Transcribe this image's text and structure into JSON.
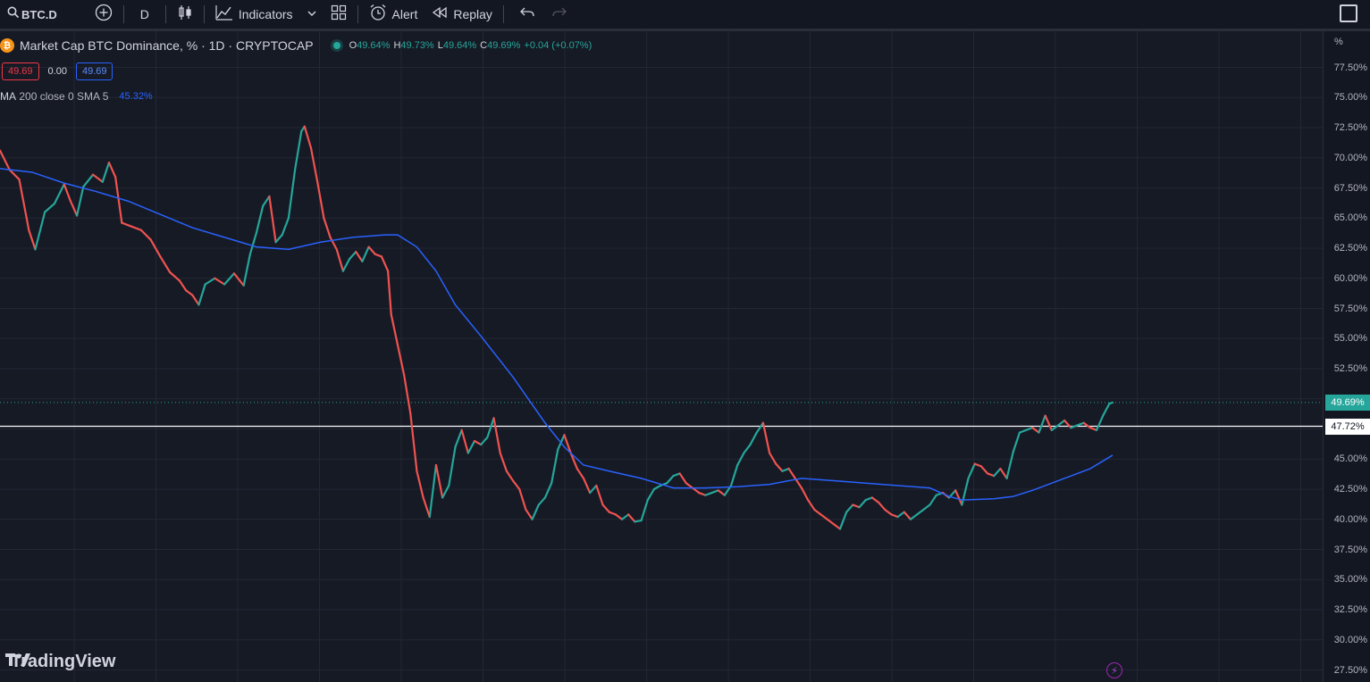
{
  "toolbar": {
    "symbol": "BTC.D",
    "interval": "D",
    "indicators_label": "Indicators",
    "alert_label": "Alert",
    "replay_label": "Replay"
  },
  "legend": {
    "title": "Market Cap BTC Dominance, % · 1D · CRYPTOCAP",
    "coin_symbol": "₿",
    "o_label": "O",
    "o_value": "49.64%",
    "h_label": "H",
    "h_value": "49.73%",
    "l_label": "L",
    "l_value": "49.64%",
    "c_label": "C",
    "c_value": "49.69%",
    "change": "+0.04 (+0.07%)",
    "bid": "49.69",
    "spread": "0.00",
    "ask": "49.69",
    "ma_name": "MA",
    "ma_params": "200 close 0 SMA 5",
    "ma_value": "45.32%"
  },
  "price_axis": {
    "unit": "%",
    "ticks": [
      "77.50%",
      "75.00%",
      "72.50%",
      "70.00%",
      "67.50%",
      "65.00%",
      "62.50%",
      "60.00%",
      "57.50%",
      "55.00%",
      "52.50%",
      "45.00%",
      "42.50%",
      "40.00%",
      "37.50%",
      "35.00%",
      "32.50%",
      "30.00%",
      "27.50%"
    ],
    "last_price_tag": "49.69%",
    "hline_tag": "47.72%"
  },
  "logo": {
    "text": "TradingView"
  },
  "colors": {
    "background": "#161a25",
    "up": "#26a69a",
    "down": "#ef5350",
    "ma": "#2962ff",
    "hline": "#ffffff"
  },
  "chart_data": {
    "type": "line",
    "title": "Market Cap BTC Dominance, % · 1D · CRYPTOCAP",
    "ylim": [
      26.5,
      80.5
    ],
    "y_ticks": [
      27.5,
      30,
      32.5,
      35,
      37.5,
      40,
      42.5,
      45,
      47.5,
      50,
      52.5,
      55,
      57.5,
      60,
      62.5,
      65,
      67.5,
      70,
      72.5,
      75,
      77.5
    ],
    "horizontal_line": 47.72,
    "last_price": 49.69,
    "price_series": [
      {
        "x": 0,
        "y": 70.6
      },
      {
        "x": 3,
        "y": 69.0
      },
      {
        "x": 6,
        "y": 68.2
      },
      {
        "x": 9,
        "y": 64.0
      },
      {
        "x": 11,
        "y": 62.4
      },
      {
        "x": 14,
        "y": 65.5
      },
      {
        "x": 17,
        "y": 66.2
      },
      {
        "x": 20,
        "y": 67.8
      },
      {
        "x": 22,
        "y": 66.4
      },
      {
        "x": 24,
        "y": 65.2
      },
      {
        "x": 26,
        "y": 67.6
      },
      {
        "x": 29,
        "y": 68.6
      },
      {
        "x": 32,
        "y": 68.0
      },
      {
        "x": 34,
        "y": 69.6
      },
      {
        "x": 36,
        "y": 68.4
      },
      {
        "x": 38,
        "y": 64.6
      },
      {
        "x": 41,
        "y": 64.3
      },
      {
        "x": 44,
        "y": 64.0
      },
      {
        "x": 47,
        "y": 63.2
      },
      {
        "x": 50,
        "y": 61.8
      },
      {
        "x": 53,
        "y": 60.5
      },
      {
        "x": 56,
        "y": 59.8
      },
      {
        "x": 58,
        "y": 59.0
      },
      {
        "x": 60,
        "y": 58.6
      },
      {
        "x": 62,
        "y": 57.8
      },
      {
        "x": 64,
        "y": 59.5
      },
      {
        "x": 67,
        "y": 60.0
      },
      {
        "x": 70,
        "y": 59.5
      },
      {
        "x": 73,
        "y": 60.4
      },
      {
        "x": 76,
        "y": 59.4
      },
      {
        "x": 78,
        "y": 62.0
      },
      {
        "x": 80,
        "y": 63.8
      },
      {
        "x": 82,
        "y": 66.0
      },
      {
        "x": 84,
        "y": 66.8
      },
      {
        "x": 86,
        "y": 63.0
      },
      {
        "x": 88,
        "y": 63.6
      },
      {
        "x": 90,
        "y": 65.0
      },
      {
        "x": 92,
        "y": 69.0
      },
      {
        "x": 94,
        "y": 72.2
      },
      {
        "x": 95,
        "y": 72.6
      },
      {
        "x": 97,
        "y": 70.8
      },
      {
        "x": 99,
        "y": 68.0
      },
      {
        "x": 101,
        "y": 65.0
      },
      {
        "x": 103,
        "y": 63.4
      },
      {
        "x": 105,
        "y": 62.4
      },
      {
        "x": 107,
        "y": 60.6
      },
      {
        "x": 109,
        "y": 61.6
      },
      {
        "x": 111,
        "y": 62.2
      },
      {
        "x": 113,
        "y": 61.4
      },
      {
        "x": 115,
        "y": 62.6
      },
      {
        "x": 117,
        "y": 62.0
      },
      {
        "x": 119,
        "y": 61.8
      },
      {
        "x": 121,
        "y": 60.6
      },
      {
        "x": 122,
        "y": 57.0
      },
      {
        "x": 124,
        "y": 54.5
      },
      {
        "x": 126,
        "y": 52.0
      },
      {
        "x": 128,
        "y": 48.8
      },
      {
        "x": 130,
        "y": 44.0
      },
      {
        "x": 132,
        "y": 41.8
      },
      {
        "x": 134,
        "y": 40.2
      },
      {
        "x": 136,
        "y": 44.5
      },
      {
        "x": 138,
        "y": 41.8
      },
      {
        "x": 140,
        "y": 42.8
      },
      {
        "x": 142,
        "y": 46.0
      },
      {
        "x": 144,
        "y": 47.4
      },
      {
        "x": 146,
        "y": 45.5
      },
      {
        "x": 148,
        "y": 46.5
      },
      {
        "x": 150,
        "y": 46.2
      },
      {
        "x": 152,
        "y": 46.8
      },
      {
        "x": 154,
        "y": 48.4
      },
      {
        "x": 156,
        "y": 45.5
      },
      {
        "x": 158,
        "y": 44.0
      },
      {
        "x": 160,
        "y": 43.2
      },
      {
        "x": 162,
        "y": 42.5
      },
      {
        "x": 164,
        "y": 40.8
      },
      {
        "x": 166,
        "y": 40.0
      },
      {
        "x": 168,
        "y": 41.2
      },
      {
        "x": 170,
        "y": 41.8
      },
      {
        "x": 172,
        "y": 43.0
      },
      {
        "x": 174,
        "y": 45.8
      },
      {
        "x": 176,
        "y": 47.0
      },
      {
        "x": 178,
        "y": 45.5
      },
      {
        "x": 180,
        "y": 44.2
      },
      {
        "x": 182,
        "y": 43.4
      },
      {
        "x": 184,
        "y": 42.2
      },
      {
        "x": 186,
        "y": 42.8
      },
      {
        "x": 188,
        "y": 41.2
      },
      {
        "x": 190,
        "y": 40.6
      },
      {
        "x": 192,
        "y": 40.4
      },
      {
        "x": 194,
        "y": 40.0
      },
      {
        "x": 196,
        "y": 40.4
      },
      {
        "x": 198,
        "y": 39.8
      },
      {
        "x": 200,
        "y": 39.9
      },
      {
        "x": 202,
        "y": 41.6
      },
      {
        "x": 204,
        "y": 42.5
      },
      {
        "x": 206,
        "y": 42.8
      },
      {
        "x": 208,
        "y": 43.0
      },
      {
        "x": 210,
        "y": 43.6
      },
      {
        "x": 212,
        "y": 43.8
      },
      {
        "x": 214,
        "y": 43.0
      },
      {
        "x": 216,
        "y": 42.6
      },
      {
        "x": 218,
        "y": 42.2
      },
      {
        "x": 220,
        "y": 42.0
      },
      {
        "x": 222,
        "y": 42.2
      },
      {
        "x": 224,
        "y": 42.4
      },
      {
        "x": 226,
        "y": 42.0
      },
      {
        "x": 228,
        "y": 42.8
      },
      {
        "x": 230,
        "y": 44.5
      },
      {
        "x": 232,
        "y": 45.5
      },
      {
        "x": 234,
        "y": 46.2
      },
      {
        "x": 236,
        "y": 47.2
      },
      {
        "x": 238,
        "y": 48.0
      },
      {
        "x": 240,
        "y": 45.5
      },
      {
        "x": 242,
        "y": 44.6
      },
      {
        "x": 244,
        "y": 44.0
      },
      {
        "x": 246,
        "y": 44.2
      },
      {
        "x": 248,
        "y": 43.4
      },
      {
        "x": 250,
        "y": 42.6
      },
      {
        "x": 252,
        "y": 41.6
      },
      {
        "x": 254,
        "y": 40.8
      },
      {
        "x": 256,
        "y": 40.4
      },
      {
        "x": 258,
        "y": 40.0
      },
      {
        "x": 260,
        "y": 39.6
      },
      {
        "x": 262,
        "y": 39.2
      },
      {
        "x": 264,
        "y": 40.6
      },
      {
        "x": 266,
        "y": 41.2
      },
      {
        "x": 268,
        "y": 41.0
      },
      {
        "x": 270,
        "y": 41.6
      },
      {
        "x": 272,
        "y": 41.8
      },
      {
        "x": 274,
        "y": 41.4
      },
      {
        "x": 276,
        "y": 40.8
      },
      {
        "x": 278,
        "y": 40.4
      },
      {
        "x": 280,
        "y": 40.2
      },
      {
        "x": 282,
        "y": 40.6
      },
      {
        "x": 284,
        "y": 40.0
      },
      {
        "x": 286,
        "y": 40.4
      },
      {
        "x": 288,
        "y": 40.8
      },
      {
        "x": 290,
        "y": 41.2
      },
      {
        "x": 292,
        "y": 42.0
      },
      {
        "x": 294,
        "y": 42.2
      },
      {
        "x": 296,
        "y": 41.8
      },
      {
        "x": 298,
        "y": 42.4
      },
      {
        "x": 300,
        "y": 41.2
      },
      {
        "x": 302,
        "y": 43.4
      },
      {
        "x": 304,
        "y": 44.6
      },
      {
        "x": 306,
        "y": 44.4
      },
      {
        "x": 308,
        "y": 43.8
      },
      {
        "x": 310,
        "y": 43.6
      },
      {
        "x": 312,
        "y": 44.2
      },
      {
        "x": 314,
        "y": 43.4
      },
      {
        "x": 316,
        "y": 45.6
      },
      {
        "x": 318,
        "y": 47.2
      },
      {
        "x": 320,
        "y": 47.4
      },
      {
        "x": 322,
        "y": 47.6
      },
      {
        "x": 324,
        "y": 47.2
      },
      {
        "x": 326,
        "y": 48.6
      },
      {
        "x": 328,
        "y": 47.4
      },
      {
        "x": 330,
        "y": 47.8
      },
      {
        "x": 332,
        "y": 48.2
      },
      {
        "x": 334,
        "y": 47.6
      },
      {
        "x": 336,
        "y": 47.8
      },
      {
        "x": 338,
        "y": 48.0
      },
      {
        "x": 340,
        "y": 47.6
      },
      {
        "x": 342,
        "y": 47.4
      },
      {
        "x": 344,
        "y": 48.6
      },
      {
        "x": 346,
        "y": 49.6
      },
      {
        "x": 347,
        "y": 49.69
      }
    ],
    "ma_series": [
      {
        "x": 0,
        "y": 69.1
      },
      {
        "x": 10,
        "y": 68.8
      },
      {
        "x": 20,
        "y": 67.9
      },
      {
        "x": 30,
        "y": 67.2
      },
      {
        "x": 40,
        "y": 66.4
      },
      {
        "x": 50,
        "y": 65.3
      },
      {
        "x": 60,
        "y": 64.2
      },
      {
        "x": 70,
        "y": 63.4
      },
      {
        "x": 80,
        "y": 62.6
      },
      {
        "x": 90,
        "y": 62.4
      },
      {
        "x": 100,
        "y": 63.0
      },
      {
        "x": 110,
        "y": 63.4
      },
      {
        "x": 120,
        "y": 63.6
      },
      {
        "x": 124,
        "y": 63.6
      },
      {
        "x": 130,
        "y": 62.6
      },
      {
        "x": 136,
        "y": 60.6
      },
      {
        "x": 142,
        "y": 57.8
      },
      {
        "x": 150,
        "y": 55.2
      },
      {
        "x": 160,
        "y": 51.8
      },
      {
        "x": 170,
        "y": 48.0
      },
      {
        "x": 176,
        "y": 46.0
      },
      {
        "x": 182,
        "y": 44.5
      },
      {
        "x": 190,
        "y": 44.0
      },
      {
        "x": 200,
        "y": 43.4
      },
      {
        "x": 210,
        "y": 42.6
      },
      {
        "x": 220,
        "y": 42.6
      },
      {
        "x": 230,
        "y": 42.7
      },
      {
        "x": 240,
        "y": 42.9
      },
      {
        "x": 250,
        "y": 43.4
      },
      {
        "x": 260,
        "y": 43.2
      },
      {
        "x": 270,
        "y": 43.0
      },
      {
        "x": 280,
        "y": 42.8
      },
      {
        "x": 290,
        "y": 42.6
      },
      {
        "x": 296,
        "y": 41.9
      },
      {
        "x": 300,
        "y": 41.6
      },
      {
        "x": 310,
        "y": 41.7
      },
      {
        "x": 316,
        "y": 41.9
      },
      {
        "x": 322,
        "y": 42.4
      },
      {
        "x": 330,
        "y": 43.2
      },
      {
        "x": 340,
        "y": 44.2
      },
      {
        "x": 347,
        "y": 45.32
      }
    ]
  }
}
